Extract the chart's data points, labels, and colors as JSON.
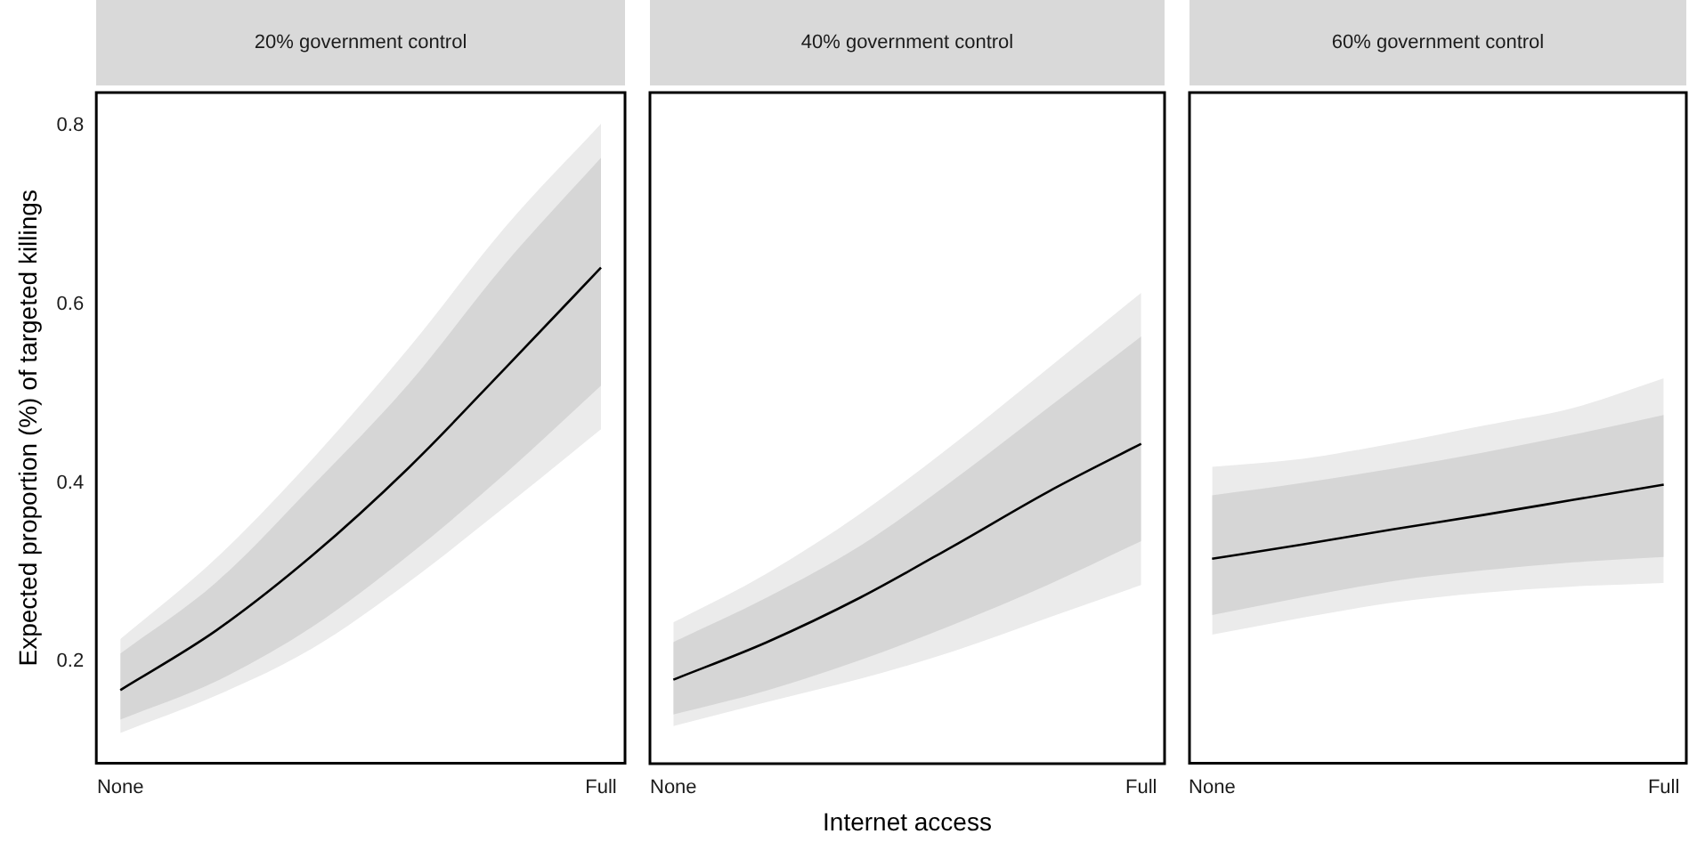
{
  "chart_data": [
    {
      "type": "line",
      "title": "20% government control",
      "ylabel": "Expected proportion (%) of targeted killings",
      "categories": [
        "None",
        null,
        null,
        null,
        null,
        "Full"
      ],
      "ylim": [
        0.086,
        0.837
      ],
      "yticks": [
        0.2,
        0.4,
        0.6,
        0.8
      ],
      "grid": false,
      "legend": false,
      "marker": "none",
      "line_style": "solid",
      "series": [
        {
          "color": "#000000",
          "values": [
            null,
            null,
            null,
            null,
            null,
            null
          ],
          "lower": [
            0.12,
            0.162,
            0.215,
            0.289,
            0.373,
            0.46
          ],
          "upper": [
            0.225,
            0.316,
            0.427,
            0.551,
            0.686,
            0.802
          ]
        },
        {
          "color": "#000000",
          "values": [
            0.168,
            0.235,
            0.319,
            0.417,
            0.528,
            0.641
          ],
          "lower": [
            0.135,
            0.178,
            0.239,
            0.319,
            0.41,
            0.509
          ],
          "upper": [
            0.209,
            0.289,
            0.397,
            0.511,
            0.645,
            0.764
          ]
        }
      ]
    },
    {
      "type": "line",
      "title": "40% government control",
      "xlabel": "Internet access",
      "categories": [
        "None",
        null,
        null,
        null,
        null,
        "Full"
      ],
      "ylim": [
        0.086,
        0.837
      ],
      "yticks": [
        0.2,
        0.4,
        0.6,
        0.8
      ],
      "tick_labels": "x",
      "grid": false,
      "legend": false,
      "marker": "none",
      "line_style": "solid",
      "series": [
        {
          "color": "#000000",
          "values": [
            null,
            null,
            null,
            null,
            null,
            null
          ],
          "lower": [
            0.128,
            0.155,
            0.181,
            0.212,
            0.249,
            0.286
          ],
          "upper": [
            0.244,
            0.299,
            0.366,
            0.444,
            0.528,
            0.613
          ]
        },
        {
          "color": "#000000",
          "values": [
            0.18,
            0.222,
            0.272,
            0.33,
            0.39,
            0.444
          ],
          "lower": [
            0.141,
            0.168,
            0.202,
            0.242,
            0.286,
            0.335
          ],
          "upper": [
            0.222,
            0.272,
            0.33,
            0.404,
            0.484,
            0.564
          ]
        }
      ]
    },
    {
      "type": "line",
      "title": "60% government control",
      "categories": [
        "None",
        null,
        null,
        null,
        null,
        "Full"
      ],
      "ylim": [
        0.086,
        0.837
      ],
      "yticks": [
        0.2,
        0.4,
        0.6,
        0.8
      ],
      "tick_labels": "x",
      "grid": false,
      "legend": false,
      "marker": "none",
      "line_style": "solid",
      "series": [
        {
          "color": "#000000",
          "values": [
            null,
            null,
            null,
            null,
            null,
            null
          ],
          "lower": [
            0.23,
            0.249,
            0.266,
            0.277,
            0.284,
            0.288
          ],
          "upper": [
            0.418,
            0.427,
            0.444,
            0.464,
            0.484,
            0.517
          ]
        },
        {
          "color": "#000000",
          "values": [
            0.315,
            0.331,
            0.348,
            0.364,
            0.381,
            0.398
          ],
          "lower": [
            0.252,
            0.272,
            0.29,
            0.302,
            0.311,
            0.317
          ],
          "upper": [
            0.386,
            0.4,
            0.416,
            0.434,
            0.454,
            0.476
          ]
        }
      ]
    }
  ]
}
